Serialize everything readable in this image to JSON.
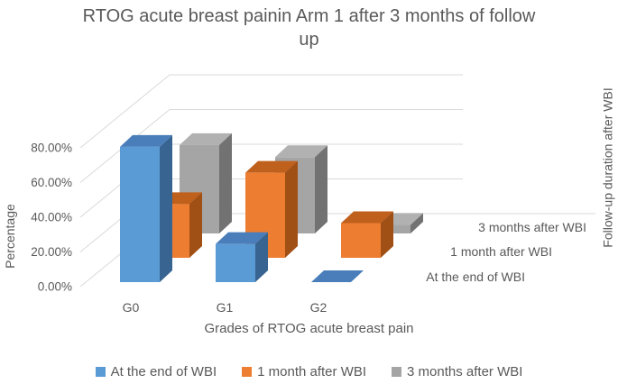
{
  "figure_type": "3d-clustered-column-chart",
  "chart_data": {
    "type": "bar",
    "style": "3d-column",
    "title": "RTOG acute breast painin Arm 1 after 3 months of follow up",
    "xlabel": "Grades of RTOG acute breast pain",
    "ylabel": "Percentage",
    "depth_axis_label": "Follow-up duration after WBI",
    "categories": [
      "G0",
      "G1",
      "G2"
    ],
    "series": [
      {
        "name": "At the end of WBI",
        "values": [
          78,
          22,
          0
        ],
        "unit": "%",
        "color": "#5B9BD5",
        "color_top": "#4A7EBB",
        "color_side": "#376491"
      },
      {
        "name": "1 month after WBI",
        "values": [
          31,
          49,
          20
        ],
        "unit": "%",
        "color": "#ED7D31",
        "color_top": "#C0601D",
        "color_side": "#A04F15"
      },
      {
        "name": "3 months after WBI",
        "values": [
          51,
          44,
          5
        ],
        "unit": "%",
        "color": "#A5A5A5",
        "color_top": "#B1B1B1",
        "color_side": "#727272"
      }
    ],
    "y_ticks": [
      "0.00%",
      "20.00%",
      "40.00%",
      "60.00%",
      "80.00%"
    ],
    "ylim": [
      0,
      80
    ],
    "grid": true,
    "legend_position": "bottom",
    "grid_color": "#D9D9D9",
    "text_color": "#595959",
    "background_color": "#FFFFFF"
  }
}
